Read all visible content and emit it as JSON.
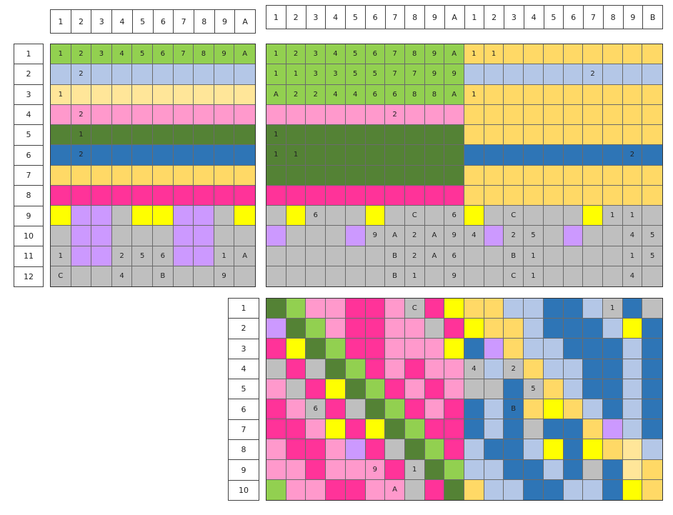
{
  "palette": {
    "G": "#92d050",
    "B": "#b4c7e7",
    "Y": "#ffe699",
    "P": "#ff99cc",
    "D": "#548235",
    "U": "#2e75b6",
    "O": "#ffd966",
    "M": "#ff3399",
    "S": "#bfbfbf",
    "L": "#cc99ff",
    "K": "#ffff00",
    "Q": "#ffe699"
  },
  "col_headers": {
    "left": [
      "1",
      "2",
      "3",
      "4",
      "5",
      "6",
      "7",
      "8",
      "9",
      "A"
    ],
    "right": [
      "1",
      "2",
      "3",
      "4",
      "5",
      "6",
      "7",
      "8",
      "9",
      "A",
      "1",
      "2",
      "3",
      "4",
      "5",
      "6",
      "7",
      "8",
      "9",
      "B"
    ]
  },
  "row_headers": {
    "top": [
      "1",
      "2",
      "3",
      "4",
      "5",
      "6",
      "7",
      "8",
      "9",
      "10",
      "11",
      "12"
    ],
    "bottom": [
      "1",
      "2",
      "3",
      "4",
      "5",
      "6",
      "7",
      "8",
      "9",
      "10"
    ]
  },
  "grid_left": {
    "rows": 12,
    "cols": 10,
    "colors": [
      "GGGGGGGGGG",
      "BBBBBBBBBB",
      "YYYYYYYYYY",
      "PPPPPPPPPP",
      "DDDDDDDDDD",
      "UUUUUUUUUU",
      "OOOOOOOOOO",
      "MMMMMMMMMM",
      "KLLSKKLLSK",
      "SLLSSSLLSS",
      "SLLSSSLLSS",
      "SSSSSSSSSS"
    ],
    "labels": [
      [
        "1",
        "2",
        "3",
        "4",
        "5",
        "6",
        "7",
        "8",
        "9",
        "A"
      ],
      [
        "",
        "2",
        "",
        "",
        "",
        "",
        "",
        "",
        "",
        ""
      ],
      [
        "1",
        "",
        "",
        "",
        "",
        "",
        "",
        "",
        "",
        ""
      ],
      [
        "",
        "2",
        "",
        "",
        "",
        "",
        "",
        "",
        "",
        ""
      ],
      [
        "",
        "1",
        "",
        "",
        "",
        "",
        "",
        "",
        "",
        ""
      ],
      [
        "",
        "2",
        "",
        "",
        "",
        "",
        "",
        "",
        "",
        ""
      ],
      [
        "",
        "",
        "",
        "",
        "",
        "",
        "",
        "",
        "",
        ""
      ],
      [
        "",
        "",
        "",
        "",
        "",
        "",
        "",
        "",
        "",
        ""
      ],
      [
        "",
        "",
        "",
        "",
        "",
        "",
        "",
        "",
        "",
        ""
      ],
      [
        "",
        "",
        "",
        "",
        "",
        "",
        "",
        "",
        "",
        ""
      ],
      [
        "1",
        "",
        "",
        "2",
        "5",
        "6",
        "",
        "",
        "1",
        "A"
      ],
      [
        "C",
        "",
        "",
        "4",
        "",
        "B",
        "",
        "",
        "9",
        ""
      ]
    ]
  },
  "grid_right": {
    "rows": 12,
    "cols": 20,
    "colors": [
      "GGGGGGGGGGOOOOOOOOOO",
      "GGGGGGGGGGBBBBBBBBBB",
      "GGGGGGGGGGOOOOOOOOOO",
      "PPPPPPPPPPOOOOOOOOOO",
      "DDDDDDDDDDOOOOOOOOOO",
      "DDDDDDDDDDUUUUUUUUUU",
      "DDDDDDDDDDOOOOOOOOOO",
      "MMMMMMMMMMOOOOOOOOOO",
      "SKSSSKSSSSKSSSSSKSSS",
      "LSSSLSSSSSSLSSSLSSSS",
      "SSSSSSSSSSSSSSSSSSSS",
      "SSSSSSSSSSSSSSSSSSSS"
    ],
    "labels": [
      [
        "1",
        "2",
        "3",
        "4",
        "5",
        "6",
        "7",
        "8",
        "9",
        "A",
        "1",
        "1",
        "",
        "",
        "",
        "",
        "",
        "",
        "",
        ""
      ],
      [
        "1",
        "1",
        "3",
        "3",
        "5",
        "5",
        "7",
        "7",
        "9",
        "9",
        "",
        "",
        "",
        "",
        "",
        "",
        "2",
        "",
        "",
        ""
      ],
      [
        "A",
        "2",
        "2",
        "4",
        "4",
        "6",
        "6",
        "8",
        "8",
        "A",
        "1",
        "",
        "",
        "",
        "",
        "",
        "",
        "",
        "",
        ""
      ],
      [
        "",
        "",
        "",
        "",
        "",
        "",
        "2",
        "",
        "",
        "",
        "",
        "",
        "",
        "",
        "",
        "",
        "",
        "",
        "",
        ""
      ],
      [
        "1",
        "",
        "",
        "",
        "",
        "",
        "",
        "",
        "",
        "",
        "",
        "",
        "",
        "",
        "",
        "",
        "",
        "",
        "",
        ""
      ],
      [
        "1",
        "1",
        "",
        "",
        "",
        "",
        "",
        "",
        "",
        "",
        "",
        "",
        "",
        "",
        "",
        "",
        "",
        "",
        "2",
        ""
      ],
      [
        "",
        "",
        "",
        "",
        "",
        "",
        "",
        "",
        "",
        "",
        "",
        "",
        "",
        "",
        "",
        "",
        "",
        "",
        "",
        ""
      ],
      [
        "",
        "",
        "",
        "",
        "",
        "",
        "",
        "",
        "",
        "",
        "",
        "",
        "",
        "",
        "",
        "",
        "",
        "",
        "",
        ""
      ],
      [
        "",
        "",
        "6",
        "",
        "",
        "",
        "",
        "C",
        "",
        "6",
        "",
        "",
        "C",
        "",
        "",
        "",
        "",
        "1",
        "1",
        ""
      ],
      [
        "",
        "",
        "",
        "",
        "",
        "9",
        "A",
        "2",
        "A",
        "9",
        "4",
        "",
        "2",
        "5",
        "",
        "",
        "",
        "",
        "4",
        "5"
      ],
      [
        "",
        "",
        "",
        "",
        "",
        "",
        "B",
        "2",
        "A",
        "6",
        "",
        "",
        "B",
        "1",
        "",
        "",
        "",
        "",
        "1",
        "5"
      ],
      [
        "",
        "",
        "",
        "",
        "",
        "",
        "B",
        "1",
        "",
        "9",
        "",
        "",
        "C",
        "1",
        "",
        "",
        "",
        "",
        "4",
        ""
      ]
    ]
  },
  "grid_bottom": {
    "rows": 10,
    "cols": 20,
    "colors": [
      "DGPPMMPSMKOOBBUUBSUS",
      "LDGPMMPPSMKOOBUUUBKU",
      "MKDGMMPPPKULOBBUUUBU",
      "SMSDGMPMPPSBSOBBUUBU",
      "PSMKDGMPMPSSUSOBUUBU",
      "MPSMSDGMPMUBUOKOBUBU",
      "MMPKMKDGMMUBUSUUOLBU",
      "PMMPLMSDGMBUUBKUKOQB",
      "PPMPPPMSDGBBUUBUSUQO",
      "GPPMMPPSMDOBBUUBBUKO"
    ],
    "labels": [
      [
        "",
        "",
        "",
        "",
        "",
        "",
        "",
        "C",
        "",
        "",
        "",
        "",
        "",
        "",
        "",
        "",
        "",
        "1",
        "",
        ""
      ],
      [
        "",
        "",
        "",
        "",
        "",
        "",
        "",
        "",
        "",
        "",
        "",
        "",
        "",
        "",
        "",
        "",
        "",
        "",
        "",
        ""
      ],
      [
        "",
        "",
        "",
        "",
        "",
        "",
        "",
        "",
        "",
        "",
        "",
        "",
        "",
        "",
        "",
        "",
        "",
        "",
        "",
        ""
      ],
      [
        "",
        "",
        "",
        "",
        "",
        "",
        "",
        "",
        "",
        "",
        "4",
        "",
        "2",
        "",
        "",
        "",
        "",
        "",
        "",
        ""
      ],
      [
        "",
        "",
        "",
        "",
        "",
        "",
        "",
        "",
        "",
        "",
        "",
        "",
        "",
        "5",
        "",
        "",
        "",
        "",
        "",
        ""
      ],
      [
        "",
        "",
        "6",
        "",
        "",
        "",
        "",
        "",
        "",
        "",
        "",
        "",
        "B",
        "",
        "",
        "",
        "",
        "",
        "",
        ""
      ],
      [
        "",
        "",
        "",
        "",
        "",
        "",
        "",
        "",
        "",
        "",
        "",
        "",
        "",
        "",
        "",
        "",
        "",
        "",
        "",
        ""
      ],
      [
        "",
        "",
        "",
        "",
        "",
        "",
        "",
        "",
        "",
        "",
        "",
        "",
        "",
        "",
        "",
        "",
        "",
        "",
        "",
        ""
      ],
      [
        "",
        "",
        "",
        "",
        "",
        "9",
        "",
        "1",
        "",
        "",
        "",
        "",
        "",
        "",
        "",
        "",
        "",
        "",
        "",
        ""
      ],
      [
        "",
        "",
        "",
        "",
        "",
        "",
        "A",
        "",
        "",
        "",
        "",
        "",
        "",
        "",
        "",
        "",
        "",
        "",
        "",
        ""
      ]
    ]
  }
}
